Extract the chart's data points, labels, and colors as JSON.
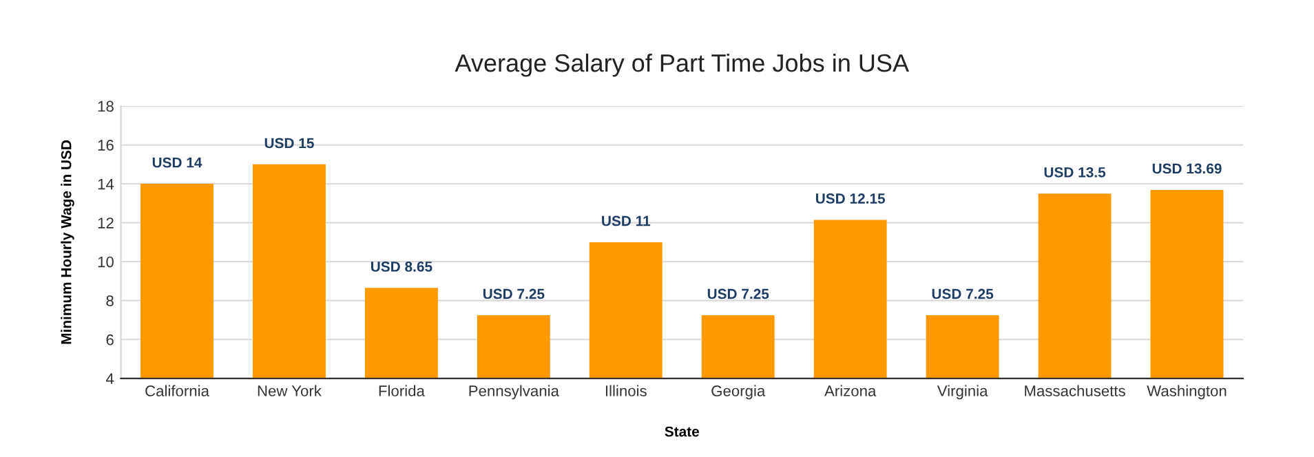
{
  "chart_data": {
    "type": "bar",
    "title": "Average Salary of Part Time Jobs in USA",
    "xlabel": "State",
    "ylabel": "Minimum Hourly Wage in USD",
    "categories": [
      "California",
      "New York",
      "Florida",
      "Pennsylvania",
      "Illinois",
      "Georgia",
      "Arizona",
      "Virginia",
      "Massachusetts",
      "Washington"
    ],
    "values": [
      14,
      15,
      8.65,
      7.25,
      11,
      7.25,
      12.15,
      7.25,
      13.5,
      13.69
    ],
    "value_labels": [
      "USD 14",
      "USD 15",
      "USD 8.65",
      "USD 7.25",
      "USD 11",
      "USD 7.25",
      "USD 12.15",
      "USD 7.25",
      "USD 13.5",
      "USD 13.69"
    ],
    "color": "#ff9900",
    "ylim": [
      4,
      18
    ],
    "yticks": [
      4,
      6,
      8,
      10,
      12,
      14,
      16,
      18
    ],
    "grid": "y",
    "legend": false
  }
}
